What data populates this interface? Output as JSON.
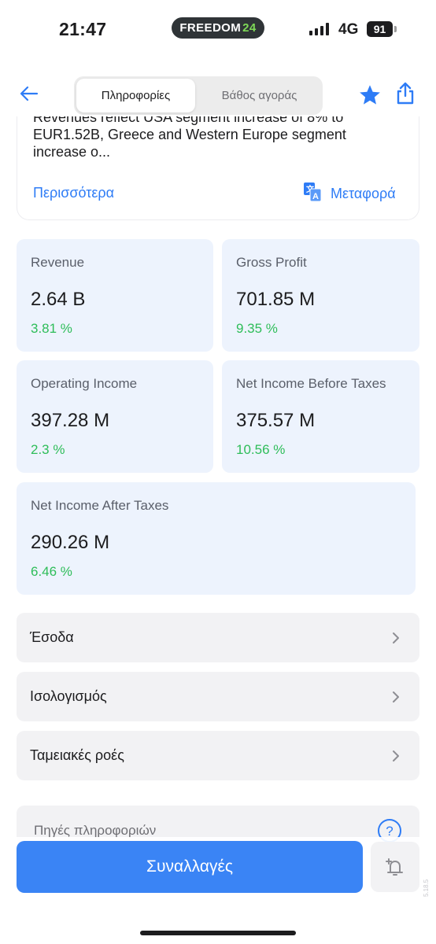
{
  "status_bar": {
    "time": "21:47",
    "island_brand": "FREEDOM",
    "island_brand_accent": "24",
    "network": "4G",
    "battery": "91"
  },
  "header": {
    "back_icon": "arrow-left-icon",
    "tabs": [
      {
        "label": "Πληροφορίες",
        "active": true
      },
      {
        "label": "Βάθος αγοράς",
        "active": false
      }
    ],
    "favorite_icon": "star-icon",
    "share_icon": "share-icon"
  },
  "description": {
    "text": "Revenues reflect USA segment increase of 8% to EUR1.52B, Greece and Western Europe segment increase o...",
    "more_label": "Περισσότερα",
    "translate_label": "Μεταφορά",
    "translate_icon": "translate-icon"
  },
  "metrics": [
    {
      "label": "Revenue",
      "value": "2.64 B",
      "change": "3.81 %"
    },
    {
      "label": "Gross Profit",
      "value": "701.85 M",
      "change": "9.35 %"
    },
    {
      "label": "Operating Income",
      "value": "397.28 M",
      "change": "2.3 %"
    },
    {
      "label": "Net Income Before Taxes",
      "value": "375.57 M",
      "change": "10.56 %"
    },
    {
      "label": "Net Income After Taxes",
      "value": "290.26 M",
      "change": "6.46 %"
    }
  ],
  "statements": [
    {
      "label": "Έσοδα"
    },
    {
      "label": "Ισολογισμός"
    },
    {
      "label": "Ταμειακές ροές"
    }
  ],
  "sources": {
    "label": "Πηγές πληροφοριών",
    "help_icon": "help-circle-icon"
  },
  "bottom": {
    "trade_label": "Συναλλαγές",
    "alert_icon": "add-alert-icon",
    "version": "5.18.5"
  },
  "colors": {
    "accent": "#2e7cf6",
    "button": "#3a84f5",
    "positive": "#2ebd59",
    "metric_bg": "#edf3fd",
    "row_bg": "#f2f2f4"
  }
}
